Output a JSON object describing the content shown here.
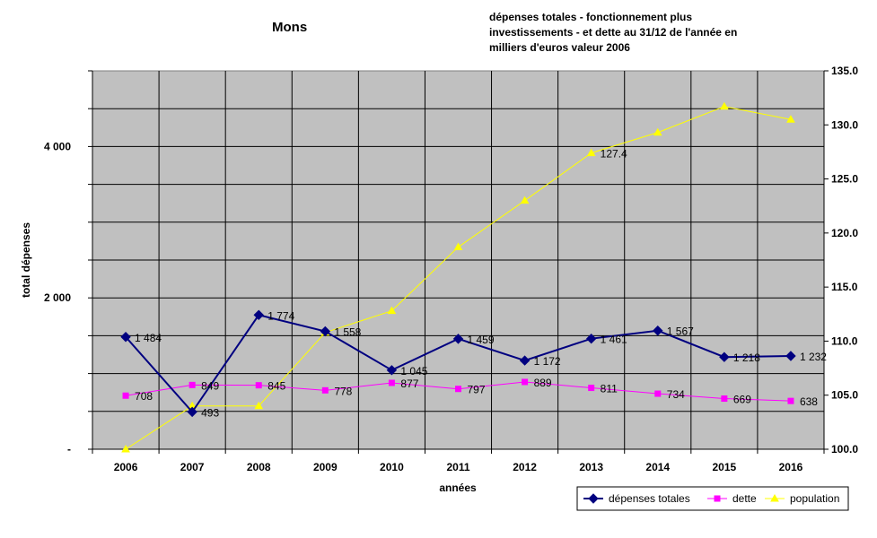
{
  "chart_data": {
    "type": "line",
    "title": "Mons",
    "subtitle": "dépenses totales - fonctionnement plus investissements - et dette au 31/12 de l'année en milliers d'euros valeur 2006",
    "xlabel": "années",
    "ylabel": "total dépenses",
    "categories": [
      "2006",
      "2007",
      "2008",
      "2009",
      "2010",
      "2011",
      "2012",
      "2013",
      "2014",
      "2015",
      "2016"
    ],
    "y_left": {
      "min": 0,
      "max": 5000,
      "ticks": [
        0,
        2000,
        4000
      ],
      "tick_labels": [
        "-",
        "2 000",
        "4 000"
      ]
    },
    "y_right": {
      "min": 100,
      "max": 135,
      "ticks": [
        100,
        105,
        110,
        115,
        120,
        125,
        130,
        135
      ],
      "tick_labels": [
        "100.0",
        "105.0",
        "110.0",
        "115.0",
        "120.0",
        "125.0",
        "130.0",
        "135.0"
      ]
    },
    "grid": true,
    "plot_background": "#c0c0c0",
    "legend_position": "bottom-right",
    "series": [
      {
        "name": "dépenses totales",
        "axis": "left",
        "color": "#000080",
        "marker": "diamond",
        "values": [
          1484,
          493,
          1774,
          1558,
          1045,
          1459,
          1172,
          1461,
          1567,
          1218,
          1232
        ],
        "labels": [
          "1 484",
          "493",
          "1 774",
          "1 558",
          "1 045",
          "1 459",
          "1 172",
          "1 461",
          "1 567",
          "1 218",
          "1 232"
        ]
      },
      {
        "name": "dette",
        "axis": "left",
        "color": "#ff00ff",
        "marker": "square",
        "values": [
          708,
          849,
          845,
          778,
          877,
          797,
          889,
          811,
          734,
          669,
          638
        ],
        "labels": [
          "708",
          "849",
          "845",
          "778",
          "877",
          "797",
          "889",
          "811",
          "734",
          "669",
          "638"
        ]
      },
      {
        "name": "population",
        "axis": "right",
        "color": "#ffff00",
        "marker": "triangle",
        "values": [
          100.0,
          104.0,
          104.0,
          110.8,
          112.8,
          118.7,
          123.0,
          127.4,
          129.3,
          131.7,
          130.5
        ],
        "labels": [
          "",
          "",
          "",
          "",
          "",
          "",
          "",
          "127.4",
          "",
          "",
          ""
        ]
      }
    ]
  }
}
